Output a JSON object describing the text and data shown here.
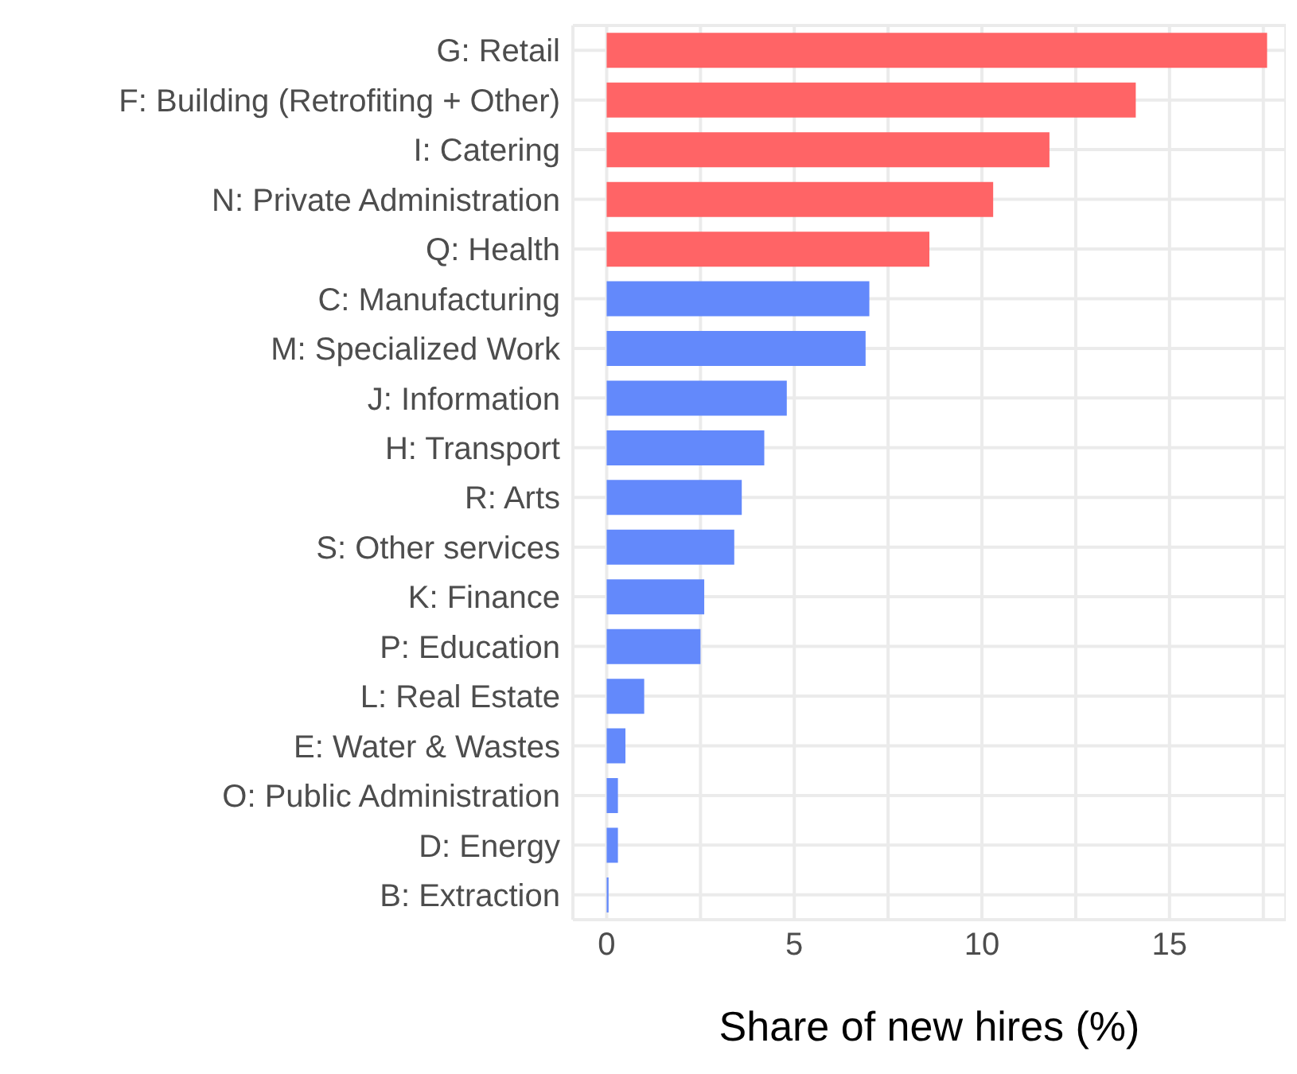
{
  "chart_data": {
    "type": "bar",
    "orientation": "horizontal",
    "xlabel": "Share of new hires (%)",
    "categories": [
      "G: Retail",
      "F: Building (Retrofiting + Other)",
      "I: Catering",
      "N: Private Administration",
      "Q: Health",
      "C: Manufacturing",
      "M: Specialized Work",
      "J: Information",
      "H: Transport",
      "R: Arts",
      "S: Other services",
      "K: Finance",
      "P: Education",
      "L: Real Estate",
      "E: Water & Wastes",
      "O: Public Administration",
      "D: Energy",
      "B: Extraction"
    ],
    "values": [
      17.6,
      14.1,
      11.8,
      10.3,
      8.6,
      7.0,
      6.9,
      4.8,
      4.2,
      3.6,
      3.4,
      2.6,
      2.5,
      1.0,
      0.5,
      0.3,
      0.3,
      0.05
    ],
    "colors": [
      "#ff6466",
      "#ff6466",
      "#ff6466",
      "#ff6466",
      "#ff6466",
      "#6389fb",
      "#6389fb",
      "#6389fb",
      "#6389fb",
      "#6389fb",
      "#6389fb",
      "#6389fb",
      "#6389fb",
      "#6389fb",
      "#6389fb",
      "#6389fb",
      "#6389fb",
      "#6389fb"
    ],
    "xlim": [
      -0.9,
      18.1
    ],
    "xticks": [
      0,
      {
        "value": 2.5,
        "label": null
      },
      5,
      {
        "value": 7.5,
        "label": null
      },
      10,
      {
        "value": 12.5,
        "label": null
      },
      15,
      {
        "value": 17.5,
        "label": null
      }
    ],
    "grid": true
  }
}
